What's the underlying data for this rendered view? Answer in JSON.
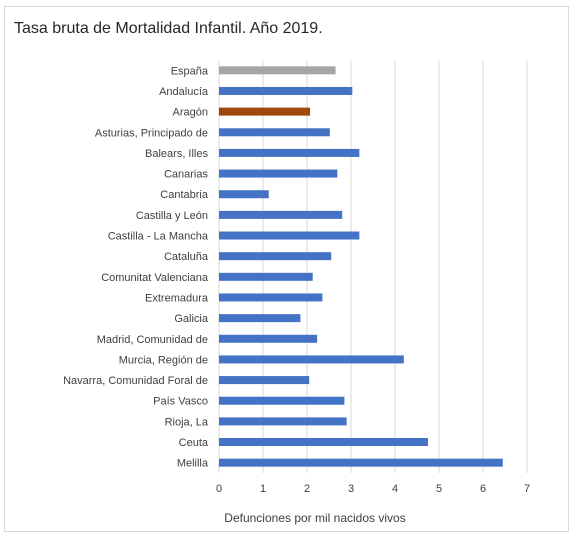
{
  "chart_data": {
    "type": "bar",
    "orientation": "horizontal",
    "title": "Tasa bruta de Mortalidad Infantil. Año 2019.",
    "xlabel": "Defunciones por mil nacidos vivos",
    "ylabel": "",
    "xlim": [
      0,
      7
    ],
    "xticks": [
      0,
      1,
      2,
      3,
      4,
      5,
      6,
      7
    ],
    "grid": true,
    "legend": "none",
    "colors": {
      "default": "#4472c4",
      "espana": "#a5a5a5",
      "aragon": "#9e480e"
    },
    "categories": [
      "España",
      "Andalucía",
      "Aragón",
      "Asturias, Principado de",
      "Balears, Illes",
      "Canarias",
      "Cantabria",
      "Castilla y León",
      "Castilla - La Mancha",
      "Cataluña",
      "Comunitat Valenciana",
      "Extremadura",
      "Galicia",
      "Madrid, Comunidad de",
      "Murcia, Región de",
      "Navarra, Comunidad Foral de",
      "País Vasco",
      "Rioja, La",
      "Ceuta",
      "Melilla"
    ],
    "values": [
      2.65,
      3.03,
      2.07,
      2.52,
      3.19,
      2.69,
      1.13,
      2.8,
      3.19,
      2.55,
      2.13,
      2.35,
      1.85,
      2.23,
      4.2,
      2.05,
      2.85,
      2.9,
      4.75,
      6.45
    ],
    "bar_colors": [
      "#a5a5a5",
      "#4472c4",
      "#9e480e",
      "#4472c4",
      "#4472c4",
      "#4472c4",
      "#4472c4",
      "#4472c4",
      "#4472c4",
      "#4472c4",
      "#4472c4",
      "#4472c4",
      "#4472c4",
      "#4472c4",
      "#4472c4",
      "#4472c4",
      "#4472c4",
      "#4472c4",
      "#4472c4",
      "#4472c4"
    ]
  }
}
